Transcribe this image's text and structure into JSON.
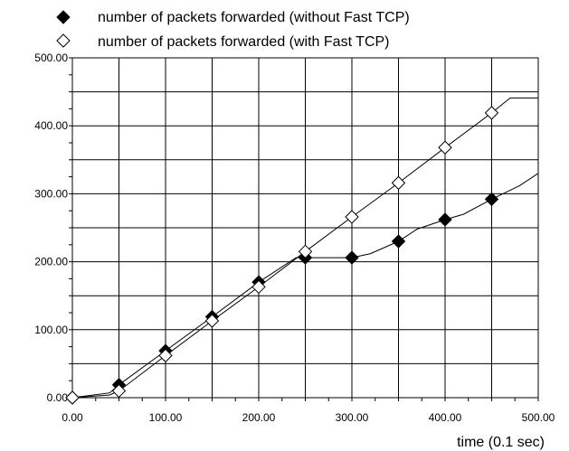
{
  "chart_data": {
    "type": "line",
    "xlabel": "time (0.1 sec)",
    "ylabel": "",
    "xlim": [
      0,
      500
    ],
    "ylim": [
      0,
      500
    ],
    "x_ticks": [
      "0.00",
      "100.00",
      "200.00",
      "300.00",
      "400.00",
      "500.00"
    ],
    "y_ticks": [
      "0.00",
      "100.00",
      "200.00",
      "300.00",
      "400.00",
      "500.00"
    ],
    "grid": true,
    "legend_position": "top",
    "series": [
      {
        "name": "number of packets forwarded (without Fast TCP)",
        "marker": "filled-diamond",
        "line": [
          [
            0,
            0
          ],
          [
            40,
            7
          ],
          [
            50,
            19
          ],
          [
            100,
            69
          ],
          [
            150,
            119
          ],
          [
            200,
            170
          ],
          [
            240,
            206
          ],
          [
            250,
            206
          ],
          [
            300,
            206
          ],
          [
            320,
            212
          ],
          [
            350,
            230
          ],
          [
            370,
            248
          ],
          [
            400,
            262
          ],
          [
            420,
            270
          ],
          [
            450,
            292
          ],
          [
            480,
            312
          ],
          [
            500,
            330
          ]
        ],
        "points": [
          [
            0,
            0
          ],
          [
            50,
            19
          ],
          [
            100,
            69
          ],
          [
            150,
            119
          ],
          [
            200,
            170
          ],
          [
            250,
            206
          ],
          [
            300,
            206
          ],
          [
            350,
            230
          ],
          [
            400,
            262
          ],
          [
            450,
            292
          ]
        ]
      },
      {
        "name": "number of packets forwarded (with Fast TCP)",
        "marker": "open-diamond",
        "line": [
          [
            0,
            0
          ],
          [
            40,
            4
          ],
          [
            50,
            10
          ],
          [
            100,
            62
          ],
          [
            150,
            113
          ],
          [
            200,
            163
          ],
          [
            250,
            215
          ],
          [
            300,
            266
          ],
          [
            350,
            316
          ],
          [
            400,
            368
          ],
          [
            450,
            419
          ],
          [
            470,
            441
          ],
          [
            500,
            441
          ]
        ],
        "points": [
          [
            0,
            0
          ],
          [
            50,
            10
          ],
          [
            100,
            62
          ],
          [
            150,
            113
          ],
          [
            200,
            163
          ],
          [
            250,
            215
          ],
          [
            300,
            266
          ],
          [
            350,
            316
          ],
          [
            400,
            368
          ],
          [
            450,
            419
          ]
        ]
      }
    ]
  }
}
